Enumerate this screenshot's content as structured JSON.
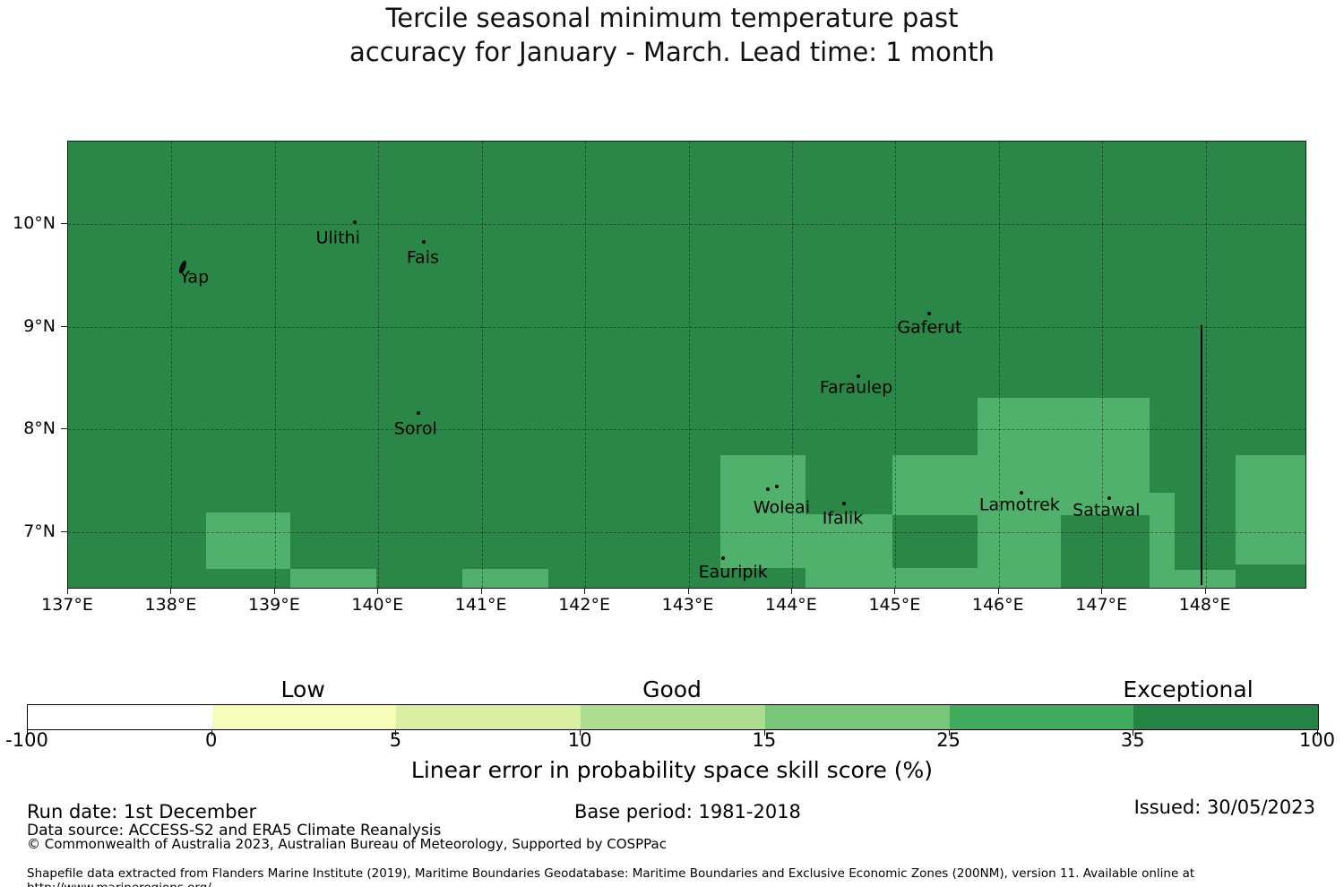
{
  "title": {
    "line1": "Tercile seasonal minimum temperature past",
    "line2": "accuracy for January - March. Lead time: 1 month"
  },
  "chart_data": {
    "type": "heatmap",
    "title": "Tercile seasonal minimum temperature past accuracy for January - March. Lead time: 1 month",
    "x_axis": {
      "suffix": "°E",
      "range": [
        137,
        148.97
      ],
      "ticks": [
        137,
        138,
        139,
        140,
        141,
        142,
        143,
        144,
        145,
        146,
        147,
        148
      ]
    },
    "y_axis": {
      "suffix": "°N",
      "range": [
        6.46,
        10.81
      ],
      "ticks": [
        10,
        9,
        8,
        7
      ]
    },
    "grid": {
      "lons": [
        138,
        139,
        140,
        141,
        142,
        143,
        144,
        145,
        146,
        147,
        148
      ],
      "lats": [
        7,
        8,
        9,
        10
      ]
    },
    "colors": {
      "base": "#2b8748",
      "cell": "#4fb16c",
      "land": "#000000",
      "eez": "#000000"
    },
    "base_value_band": "35-100",
    "cell_value_band": "25-35",
    "cells": [
      {
        "lon0": 138.33,
        "lat0": 6.64,
        "lon1": 139.15,
        "lat1": 7.19
      },
      {
        "lon0": 139.15,
        "lat0": 6.455,
        "lon1": 139.98,
        "lat1": 6.64
      },
      {
        "lon0": 140.81,
        "lat0": 6.455,
        "lon1": 141.64,
        "lat1": 6.64
      },
      {
        "lon0": 143.31,
        "lat0": 6.65,
        "lon1": 144.13,
        "lat1": 7.75
      },
      {
        "lon0": 144.13,
        "lat0": 6.455,
        "lon1": 144.97,
        "lat1": 7.17
      },
      {
        "lon0": 144.97,
        "lat0": 7.16,
        "lon1": 147.46,
        "lat1": 7.75
      },
      {
        "lon0": 145.79,
        "lat0": 7.75,
        "lon1": 147.46,
        "lat1": 8.31
      },
      {
        "lon0": 145.79,
        "lat0": 6.455,
        "lon1": 146.6,
        "lat1": 7.16
      },
      {
        "lon0": 144.97,
        "lat0": 6.455,
        "lon1": 145.79,
        "lat1": 6.65
      },
      {
        "lon0": 147.46,
        "lat0": 6.63,
        "lon1": 147.7,
        "lat1": 7.38
      },
      {
        "lon0": 147.46,
        "lat0": 6.455,
        "lon1": 148.29,
        "lat1": 6.63
      },
      {
        "lon0": 148.29,
        "lat0": 6.68,
        "lon1": 148.965,
        "lat1": 7.75
      }
    ],
    "islands": [
      {
        "label": "Yap",
        "islet": true,
        "dots": [
          [
            138.11,
            9.58
          ]
        ],
        "label_pos": [
          138.22,
          9.48
        ]
      },
      {
        "label": "Ulithi",
        "dots": [
          [
            139.77,
            10.02
          ]
        ],
        "label_pos": [
          139.61,
          9.86
        ]
      },
      {
        "label": "Fais",
        "dots": [
          [
            140.44,
            9.83
          ]
        ],
        "label_pos": [
          140.43,
          9.67
        ]
      },
      {
        "label": "Sorol",
        "dots": [
          [
            140.39,
            8.16
          ]
        ],
        "label_pos": [
          140.36,
          8.0
        ]
      },
      {
        "label": "Gaferut",
        "dots": [
          [
            145.33,
            9.13
          ]
        ],
        "label_pos": [
          145.33,
          8.99
        ]
      },
      {
        "label": "Faraulep",
        "dots": [
          [
            144.64,
            8.52
          ]
        ],
        "label_pos": [
          144.62,
          8.4
        ]
      },
      {
        "label": "Woleai",
        "dots": [
          [
            143.77,
            7.42
          ],
          [
            143.85,
            7.44
          ]
        ],
        "label_pos": [
          143.9,
          7.23
        ]
      },
      {
        "label": "Ifalik",
        "dots": [
          [
            144.5,
            7.28
          ]
        ],
        "label_pos": [
          144.49,
          7.13
        ]
      },
      {
        "label": "Eauripik",
        "dots": [
          [
            143.33,
            6.74
          ]
        ],
        "label_pos": [
          143.43,
          6.6
        ]
      },
      {
        "label": "Lamotrek",
        "dots": [
          [
            146.22,
            7.38
          ]
        ],
        "label_pos": [
          146.2,
          7.26
        ]
      },
      {
        "label": "Satawal",
        "dots": [
          [
            147.07,
            7.33
          ]
        ],
        "label_pos": [
          147.04,
          7.21
        ]
      }
    ],
    "eez_boundary": {
      "lon": 147.96,
      "lat_top": 9.01,
      "lat_bottom": 6.48
    },
    "colorbar": {
      "boundaries": [
        "-100",
        "0",
        "5",
        "10",
        "15",
        "25",
        "35",
        "100"
      ],
      "colors": [
        "#ffffff",
        "#f7fcb9",
        "#d9f0a3",
        "#addd8e",
        "#78c679",
        "#41ab5d",
        "#238443"
      ],
      "categories": [
        {
          "label": "Low",
          "pct": 21.4
        },
        {
          "label": "Good",
          "pct": 50
        },
        {
          "label": "Exceptional",
          "pct": 90
        }
      ],
      "caption": "Linear error in probability space skill score (%)"
    }
  },
  "footer": {
    "run_date": "Run date: 1st December",
    "base_period": "Base period: 1981-2018",
    "issued": "Issued: 30/05/2023",
    "data_source": "Data source: ACCESS-S2 and ERA5 Climate Reanalysis",
    "copyright": "© Commonwealth of Australia 2023, Australian Bureau of Meteorology, Supported by COSPPac",
    "shapefile_note": "Shapefile data extracted from Flanders Marine Institute (2019), Maritime Boundaries Geodatabase: Maritime Boundaries and Exclusive Economic Zones (200NM), version 11. Available online at http://www.marineregions.org/."
  }
}
